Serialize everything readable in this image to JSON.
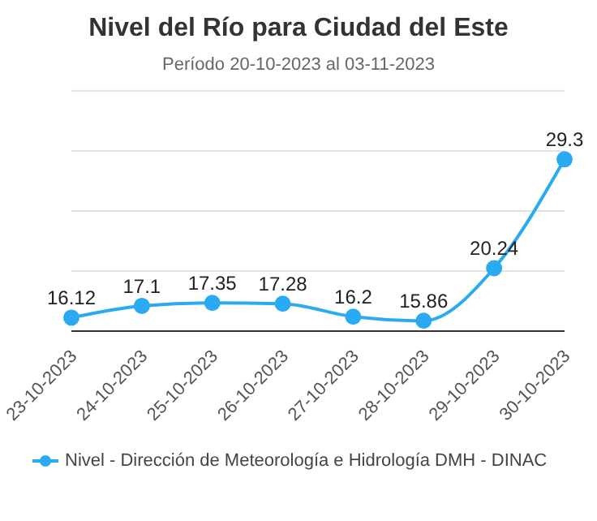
{
  "chart_data": {
    "type": "line",
    "title": "Nivel del Río para Ciudad del Este",
    "subtitle": "Período 20-10-2023 al 03-11-2023",
    "categories": [
      "23-10-2023",
      "24-10-2023",
      "25-10-2023",
      "26-10-2023",
      "27-10-2023",
      "28-10-2023",
      "29-10-2023",
      "30-10-2023"
    ],
    "series": [
      {
        "name": "Nivel - Dirección de Meteorología e Hidrología DMH - DINAC",
        "color": "#2aaaf0",
        "values": [
          16.12,
          17.1,
          17.35,
          17.28,
          16.2,
          15.86,
          20.24,
          29.3
        ]
      }
    ],
    "data_labels": true,
    "ylim": [
      15,
      35
    ],
    "yticks": [
      {
        "value": 20,
        "label": null
      },
      {
        "value": 25,
        "label": null
      },
      {
        "value": 30,
        "label": null
      }
    ],
    "grid": "y",
    "tick_labels": "x",
    "legend": "bottom",
    "marker": "circle",
    "line_style": "solid"
  }
}
